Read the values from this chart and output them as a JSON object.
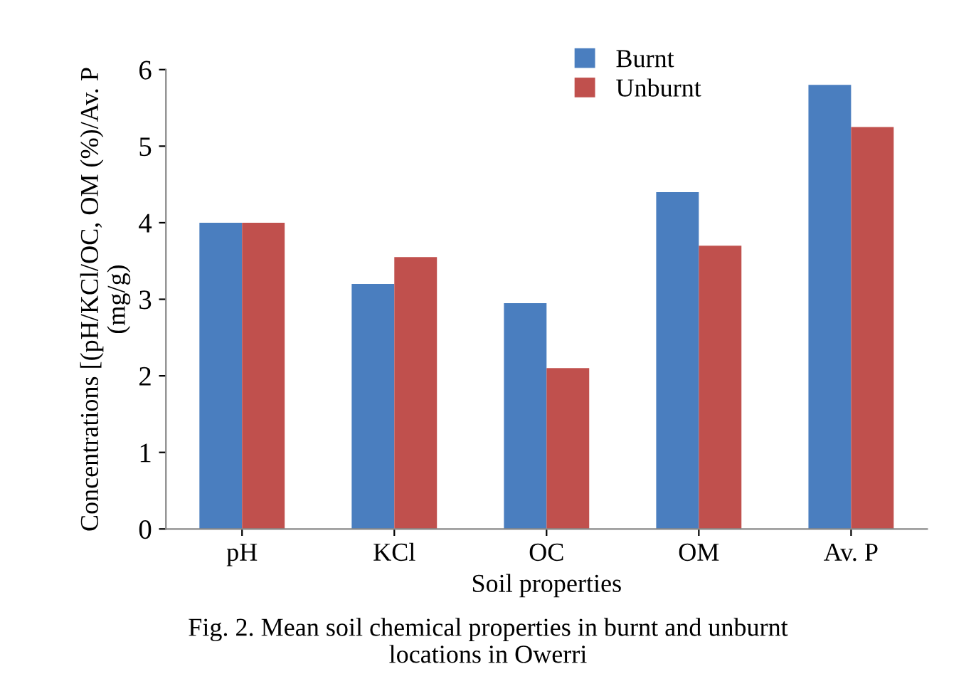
{
  "chart_data": {
    "type": "bar",
    "categories": [
      "pH",
      "KCl",
      "OC",
      "OM",
      "Av. P"
    ],
    "series": [
      {
        "name": "Burnt",
        "color": "#4a7ebf",
        "values": [
          4.0,
          3.2,
          2.95,
          4.4,
          5.8
        ]
      },
      {
        "name": "Unburnt",
        "color": "#c0504d",
        "values": [
          4.0,
          3.55,
          2.1,
          3.7,
          5.25
        ]
      }
    ],
    "ylim": [
      0,
      6
    ],
    "yticks": [
      0,
      1,
      2,
      3,
      4,
      5,
      6
    ],
    "xlabel": "Soil properties",
    "ylabel": "Concentrations [(pH/KCl/OC, OM (%)/Av. P\n(mg/g)",
    "annotations": [
      "Fig. 2. Mean soil chemical properties in burnt and unburnt\nlocations in Owerri"
    ],
    "grid": false,
    "legend": "top"
  }
}
